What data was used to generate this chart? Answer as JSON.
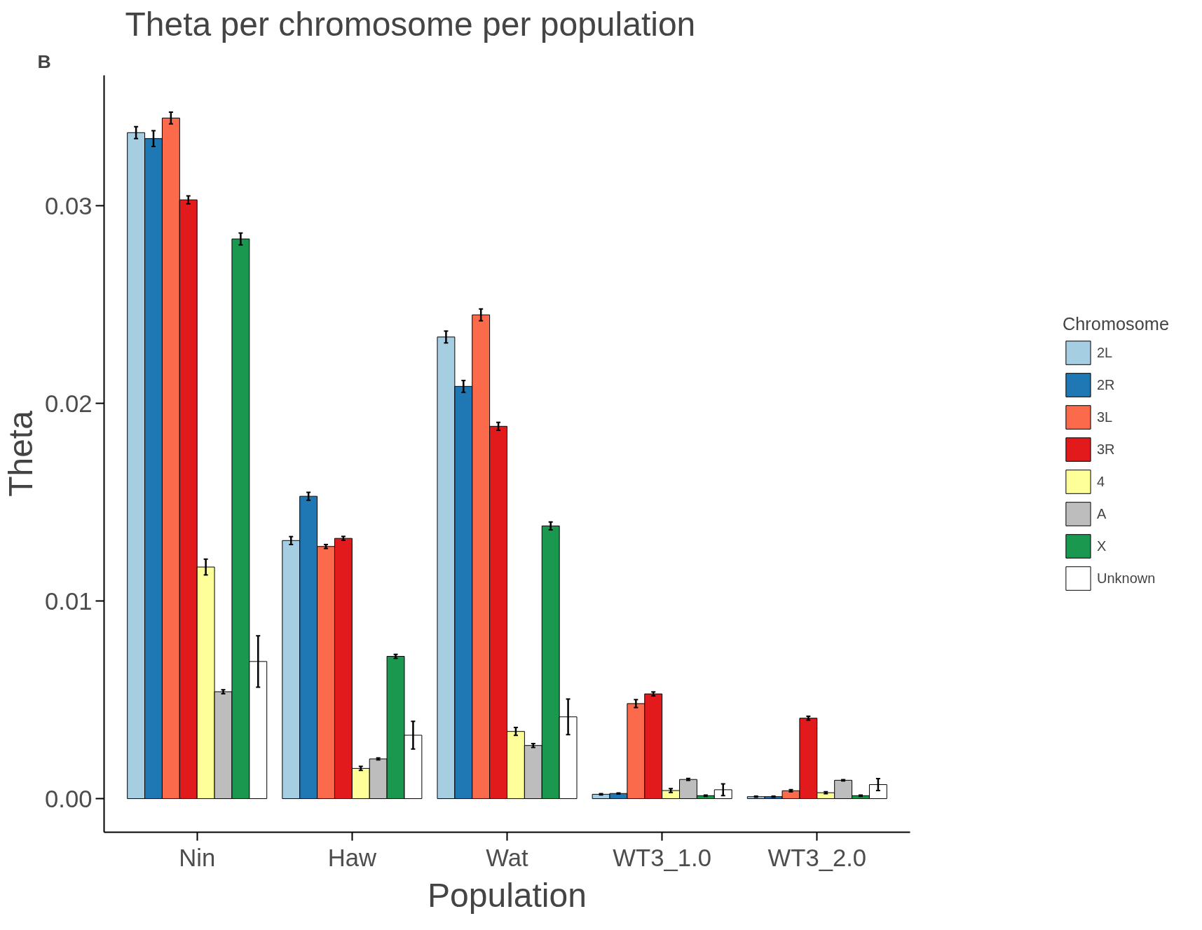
{
  "chart_data": {
    "type": "bar",
    "title": "Theta per chromosome per population",
    "xlabel": "Population",
    "ylabel": "Theta",
    "legend_title": "Chromosome",
    "legend": "right",
    "grid": false,
    "annotations": [
      "B"
    ],
    "categories": [
      "Nin",
      "Haw",
      "Wat",
      "WT3_1.0",
      "WT3_2.0"
    ],
    "ylim": [
      -0.0017,
      0.0366
    ],
    "yticks": [
      {
        "value": 0,
        "label": "0.00"
      },
      {
        "value": 0.01,
        "label": "0.01"
      },
      {
        "value": 0.02,
        "label": "0.02"
      },
      {
        "value": 0.03,
        "label": "0.03"
      }
    ],
    "series": [
      {
        "name": "2L",
        "color": "#a6cee3",
        "values": [
          0.0337,
          0.01306,
          0.02336,
          0.00022,
          0.0001
        ],
        "errors": [
          0.0003,
          0.0002,
          0.0003,
          3e-05,
          3e-05
        ]
      },
      {
        "name": "2R",
        "color": "#1f78b4",
        "values": [
          0.0334,
          0.0153,
          0.02086,
          0.00026,
          0.0001
        ],
        "errors": [
          0.0004,
          0.0002,
          0.0003,
          3e-05,
          3e-05
        ]
      },
      {
        "name": "3L",
        "color": "#fb6a4a",
        "values": [
          0.03444,
          0.01276,
          0.02448,
          0.00481,
          0.0004
        ],
        "errors": [
          0.0003,
          0.0001,
          0.0003,
          0.0002,
          5e-05
        ]
      },
      {
        "name": "3R",
        "color": "#e31a1c",
        "values": [
          0.0303,
          0.01317,
          0.01884,
          0.0053,
          0.00407
        ],
        "errors": [
          0.0002,
          0.0001,
          0.0002,
          0.0001,
          0.0001
        ]
      },
      {
        "name": "4",
        "color": "#ffff99",
        "values": [
          0.01172,
          0.00153,
          0.0034,
          0.00041,
          0.0003
        ],
        "errors": [
          0.0004,
          0.0001,
          0.0002,
          0.0001,
          5e-05
        ]
      },
      {
        "name": "A",
        "color": "#bdbdbd",
        "values": [
          0.00541,
          0.00201,
          0.00269,
          0.00097,
          0.00093
        ],
        "errors": [
          0.0001,
          5e-05,
          0.0001,
          5e-05,
          3e-05
        ]
      },
      {
        "name": "X",
        "color": "#1a9850",
        "values": [
          0.02832,
          0.0072,
          0.0138,
          0.00015,
          0.00015
        ],
        "errors": [
          0.0003,
          0.0001,
          0.0002,
          3e-05,
          3e-05
        ]
      },
      {
        "name": "Unknown",
        "color": "#ffffff",
        "values": [
          0.00694,
          0.00321,
          0.00414,
          0.00045,
          0.00071
        ],
        "errors": [
          0.0013,
          0.0007,
          0.0009,
          0.0003,
          0.0003
        ]
      }
    ]
  }
}
